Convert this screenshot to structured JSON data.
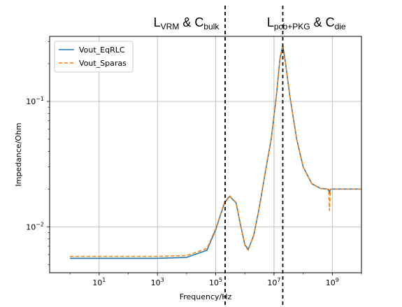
{
  "chart_data": {
    "type": "line",
    "title": "",
    "xlabel": "Frequency/Hz",
    "ylabel": "Impedance/Ohm",
    "xscale": "log",
    "yscale": "log",
    "xlim": [
      0.2,
      10000000000
    ],
    "ylim": [
      0.0043,
      0.33
    ],
    "grid": true,
    "legend_position": "top-left",
    "x_ticks": [
      {
        "value": 10,
        "base": "10",
        "exp": "1"
      },
      {
        "value": 1000,
        "base": "10",
        "exp": "3"
      },
      {
        "value": 100000,
        "base": "10",
        "exp": "5"
      },
      {
        "value": 10000000,
        "base": "10",
        "exp": "7"
      },
      {
        "value": 1000000000,
        "base": "10",
        "exp": "9"
      }
    ],
    "y_ticks": [
      {
        "value": 0.01,
        "base": "10",
        "exp": "−2"
      },
      {
        "value": 0.1,
        "base": "10",
        "exp": "−1"
      }
    ],
    "vertical_markers": [
      {
        "x": 210000,
        "style": "dashed",
        "color": "#000000"
      },
      {
        "x": 20000000,
        "style": "dashed",
        "color": "#000000"
      }
    ],
    "region_annotations": [
      {
        "parts": [
          {
            "text": "L",
            "sub": "VRM"
          },
          {
            "text": " & C",
            "sub": "bulk"
          }
        ]
      },
      {
        "parts": [
          {
            "text": "L",
            "sub": "pcb+PKG"
          },
          {
            "text": " & C",
            "sub": "die"
          }
        ]
      }
    ],
    "series": [
      {
        "name": "Vout_EqRLC",
        "color": "#1f77b4",
        "style": "solid",
        "x": [
          1,
          100,
          1000,
          10000,
          50000,
          100000,
          200000,
          300000,
          500000,
          700000,
          1000000,
          1300000,
          2000000,
          3000000,
          5000000,
          8000000,
          12000000,
          16000000,
          20000000,
          25000000,
          35000000,
          60000000,
          100000000,
          200000000,
          400000000,
          600000000,
          750000000,
          800000000,
          850000000,
          900000000,
          1000000000,
          2000000000,
          5000000000,
          10000000000
        ],
        "y": [
          0.0056,
          0.0056,
          0.0056,
          0.0057,
          0.0065,
          0.0095,
          0.0155,
          0.0175,
          0.0155,
          0.0105,
          0.0072,
          0.0066,
          0.0085,
          0.0135,
          0.027,
          0.05,
          0.11,
          0.22,
          0.28,
          0.2,
          0.11,
          0.05,
          0.03,
          0.022,
          0.0202,
          0.0201,
          0.0198,
          0.0185,
          0.0198,
          0.02,
          0.02,
          0.02,
          0.02,
          0.02
        ]
      },
      {
        "name": "Vout_Sparas",
        "color": "#ff7f0e",
        "style": "dashed",
        "x": [
          1,
          100,
          1000,
          10000,
          50000,
          100000,
          200000,
          300000,
          500000,
          700000,
          1000000,
          1300000,
          2000000,
          3000000,
          5000000,
          8000000,
          12000000,
          16000000,
          20000000,
          25000000,
          35000000,
          60000000,
          100000000,
          200000000,
          400000000,
          600000000,
          750000000,
          800000000,
          850000000,
          900000000,
          1000000000,
          2000000000,
          5000000000,
          10000000000
        ],
        "y": [
          0.0058,
          0.0058,
          0.0058,
          0.0059,
          0.0067,
          0.0097,
          0.0157,
          0.0176,
          0.0156,
          0.0106,
          0.0071,
          0.0065,
          0.0085,
          0.0136,
          0.027,
          0.05,
          0.11,
          0.215,
          0.27,
          0.2,
          0.11,
          0.05,
          0.03,
          0.022,
          0.0202,
          0.0201,
          0.0197,
          0.0135,
          0.0195,
          0.02,
          0.02,
          0.02,
          0.02,
          0.02
        ]
      }
    ]
  }
}
